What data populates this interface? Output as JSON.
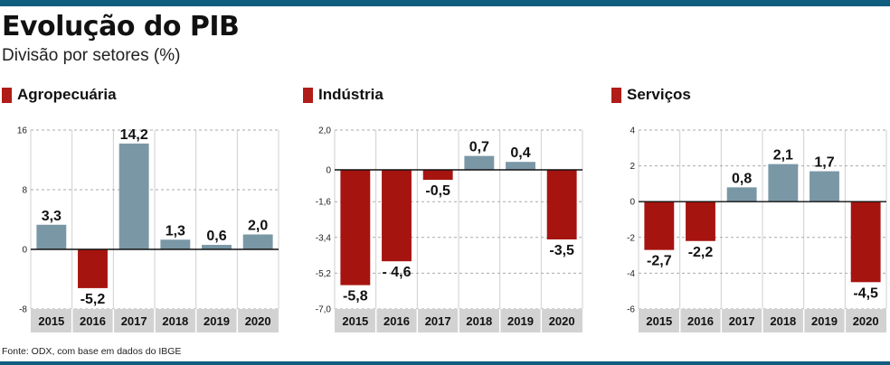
{
  "title": "Evolução do PIB",
  "subtitle": "Divisão por setores (%)",
  "source": "Fonte: ODX, com base em dados do IBGE",
  "colors": {
    "positive": "#7a97a6",
    "negative": "#a6140f",
    "accent": "#0f5d7f",
    "legend_square": "#b01c18"
  },
  "chart_data": [
    {
      "type": "bar",
      "title": "Agropecuária",
      "categories": [
        "2015",
        "2016",
        "2017",
        "2018",
        "2019",
        "2020"
      ],
      "values": [
        3.3,
        -5.2,
        14.2,
        1.3,
        0.6,
        2.0
      ],
      "value_labels": [
        "3,3",
        "-5,2",
        "14,2",
        "1,3",
        "0,6",
        "2,0"
      ],
      "ylim": [
        -8,
        16
      ],
      "ticks": [
        16,
        8,
        0,
        -8
      ],
      "tick_labels": [
        "16",
        "8",
        "0",
        "-8"
      ],
      "xlabel": "",
      "ylabel": ""
    },
    {
      "type": "bar",
      "title": "Indústria",
      "categories": [
        "2015",
        "2016",
        "2017",
        "2018",
        "2019",
        "2020"
      ],
      "values": [
        -5.8,
        -4.6,
        -0.5,
        0.7,
        0.4,
        -3.5
      ],
      "value_labels": [
        "-5,8",
        "- 4,6",
        "-0,5",
        "0,7",
        "0,4",
        "-3,5"
      ],
      "ylim": [
        -7.0,
        2.0
      ],
      "ticks": [
        2.0,
        0,
        -1.6,
        -3.4,
        -5.2,
        -7.0
      ],
      "tick_labels": [
        "2,0",
        "0",
        "-1,6",
        "-3,4",
        "-5,2",
        "-7,0"
      ],
      "xlabel": "",
      "ylabel": ""
    },
    {
      "type": "bar",
      "title": "Serviços",
      "categories": [
        "2015",
        "2016",
        "2017",
        "2018",
        "2019",
        "2020"
      ],
      "values": [
        -2.7,
        -2.2,
        0.8,
        2.1,
        1.7,
        -4.5
      ],
      "value_labels": [
        "-2,7",
        "-2,2",
        "0,8",
        "2,1",
        "1,7",
        "-4,5"
      ],
      "ylim": [
        -6,
        4
      ],
      "ticks": [
        4,
        2,
        0,
        -2,
        -4,
        -6
      ],
      "tick_labels": [
        "4",
        "2",
        "0",
        "-2",
        "-4",
        "-6"
      ],
      "xlabel": "",
      "ylabel": ""
    }
  ]
}
